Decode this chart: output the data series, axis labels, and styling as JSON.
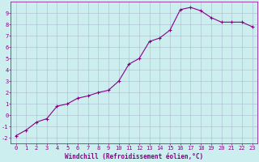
{
  "x": [
    0,
    1,
    2,
    3,
    4,
    5,
    6,
    7,
    8,
    9,
    10,
    11,
    12,
    13,
    14,
    15,
    16,
    17,
    18,
    19,
    20,
    21,
    22,
    23
  ],
  "y": [
    -1.8,
    -1.3,
    -0.6,
    -0.3,
    0.8,
    1.0,
    1.5,
    1.7,
    2.0,
    2.2,
    3.0,
    4.5,
    5.0,
    6.5,
    6.8,
    7.5,
    9.3,
    9.5,
    9.2,
    8.6,
    8.2,
    8.2,
    8.2,
    7.8
  ],
  "line_color": "#990099",
  "marker": "+",
  "marker_size": 3.0,
  "bg_color": "#cceeee",
  "grid_color": "#aabbcc",
  "xlabel": "Windchill (Refroidissement éolien,°C)",
  "xlim": [
    -0.5,
    23.5
  ],
  "ylim": [
    -2.5,
    10.0
  ],
  "yticks": [
    -2,
    -1,
    0,
    1,
    2,
    3,
    4,
    5,
    6,
    7,
    8,
    9
  ],
  "xticks": [
    0,
    1,
    2,
    3,
    4,
    5,
    6,
    7,
    8,
    9,
    10,
    11,
    12,
    13,
    14,
    15,
    16,
    17,
    18,
    19,
    20,
    21,
    22,
    23
  ],
  "line_width": 0.8,
  "tick_fontsize": 5.0,
  "xlabel_fontsize": 5.5,
  "color": "#880088"
}
